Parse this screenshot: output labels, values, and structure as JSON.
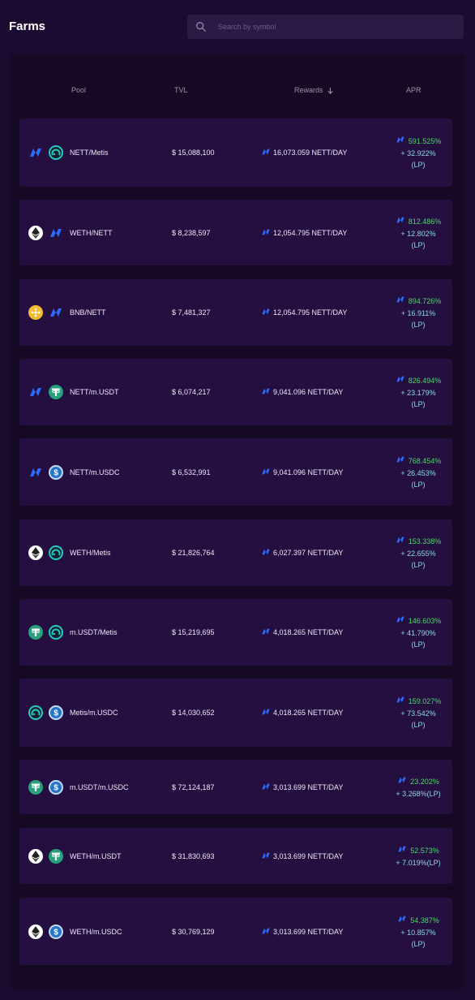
{
  "page": {
    "title": "Farms"
  },
  "search": {
    "placeholder": "Search by symbol",
    "value": ""
  },
  "table": {
    "headers": {
      "pool": "Pool",
      "tvl": "TVL",
      "rewards": "Rewards",
      "apr": "APR"
    },
    "sort_icon": "arrow-down-icon"
  },
  "colors": {
    "background": "#1b0b30",
    "panel": "#150924",
    "row": "#240f40",
    "apr_green": "#4fd66a",
    "lp_blue": "#8fd6f0",
    "nett_blue": "#2d6bff",
    "metis_teal": "#23c9c3",
    "usdt_green": "#26a17b",
    "usdc_blue": "#2775ca",
    "bnb_yellow": "#f3ba2f"
  },
  "farms": [
    {
      "token_a": "nett",
      "token_b": "metis",
      "pair": "NETT/Metis",
      "tvl": "$ 15,088,100",
      "rewards": "16,073.059 NETT/DAY",
      "apr": "591.525%",
      "apr_lp_line1": "+  32.922%",
      "apr_lp_line2": "(LP)"
    },
    {
      "token_a": "weth",
      "token_b": "nett",
      "pair": "WETH/NETT",
      "tvl": "$ 8,238,597",
      "rewards": "12,054.795 NETT/DAY",
      "apr": "812.486%",
      "apr_lp_line1": "+  12.802%",
      "apr_lp_line2": "(LP)"
    },
    {
      "token_a": "bnb",
      "token_b": "nett",
      "pair": "BNB/NETT",
      "tvl": "$ 7,481,327",
      "rewards": "12,054.795 NETT/DAY",
      "apr": "894.726%",
      "apr_lp_line1": "+  16.911%",
      "apr_lp_line2": "(LP)"
    },
    {
      "token_a": "nett",
      "token_b": "usdt",
      "pair": "NETT/m.USDT",
      "tvl": "$ 6,074,217",
      "rewards": "9,041.096 NETT/DAY",
      "apr": "826.494%",
      "apr_lp_line1": "+  23.179%",
      "apr_lp_line2": "(LP)"
    },
    {
      "token_a": "nett",
      "token_b": "usdc",
      "pair": "NETT/m.USDC",
      "tvl": "$ 6,532,991",
      "rewards": "9,041.096 NETT/DAY",
      "apr": "768.454%",
      "apr_lp_line1": "+  26.453%",
      "apr_lp_line2": "(LP)"
    },
    {
      "token_a": "weth",
      "token_b": "metis",
      "pair": "WETH/Metis",
      "tvl": "$ 21,826,764",
      "rewards": "6,027.397 NETT/DAY",
      "apr": "153.338%",
      "apr_lp_line1": "+  22.655%",
      "apr_lp_line2": "(LP)"
    },
    {
      "token_a": "usdt",
      "token_b": "metis",
      "pair": "m.USDT/Metis",
      "tvl": "$ 15,219,695",
      "rewards": "4,018.265 NETT/DAY",
      "apr": "146.603%",
      "apr_lp_line1": "+  41.790%",
      "apr_lp_line2": "(LP)"
    },
    {
      "token_a": "metis",
      "token_b": "usdc",
      "pair": "Metis/m.USDC",
      "tvl": "$ 14,030,652",
      "rewards": "4,018.265 NETT/DAY",
      "apr": "159.027%",
      "apr_lp_line1": "+  73.542%",
      "apr_lp_line2": "(LP)"
    },
    {
      "token_a": "usdt",
      "token_b": "usdc",
      "pair": "m.USDT/m.USDC",
      "tvl": "$ 72,124,187",
      "rewards": "3,013.699 NETT/DAY",
      "apr": "23.202%",
      "apr_lp_line1": "+  3.268%(LP)",
      "apr_lp_line2": ""
    },
    {
      "token_a": "weth",
      "token_b": "usdt",
      "pair": "WETH/m.USDT",
      "tvl": "$ 31,830,693",
      "rewards": "3,013.699 NETT/DAY",
      "apr": "52.573%",
      "apr_lp_line1": "+  7.019%(LP)",
      "apr_lp_line2": ""
    },
    {
      "token_a": "weth",
      "token_b": "usdc",
      "pair": "WETH/m.USDC",
      "tvl": "$ 30,769,129",
      "rewards": "3,013.699 NETT/DAY",
      "apr": "54.387%",
      "apr_lp_line1": "+  10.857%",
      "apr_lp_line2": "(LP)"
    }
  ]
}
